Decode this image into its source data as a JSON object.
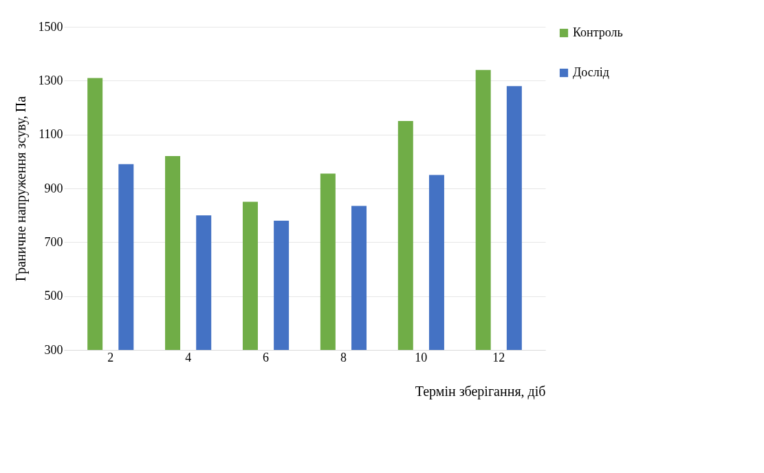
{
  "chart_data": {
    "type": "bar",
    "xlabel": "Термін зберігання, діб",
    "ylabel": "Граничне напруження зсуву, Па",
    "categories": [
      "2",
      "4",
      "6",
      "8",
      "10",
      "12"
    ],
    "series": [
      {
        "name": "Контроль",
        "color": "#70ad47",
        "values": [
          1310,
          1020,
          850,
          955,
          1150,
          1340
        ]
      },
      {
        "name": "Дослід",
        "color": "#4472c4",
        "values": [
          990,
          800,
          780,
          835,
          950,
          1280
        ]
      }
    ],
    "ylim": [
      300,
      1500
    ],
    "yticks": [
      300,
      500,
      700,
      900,
      1100,
      1300,
      1500
    ],
    "grid": "y",
    "legend": "right"
  }
}
